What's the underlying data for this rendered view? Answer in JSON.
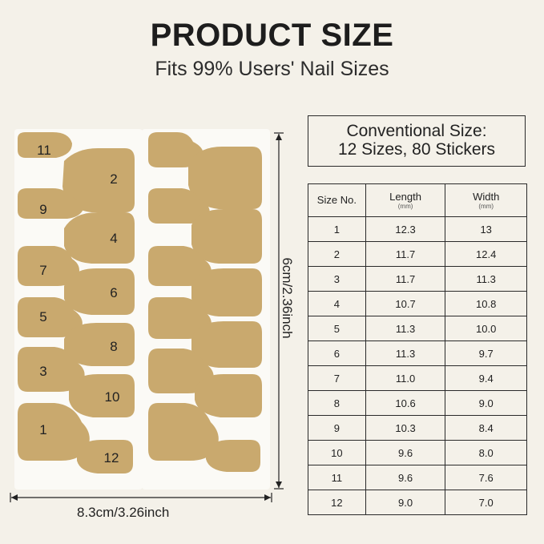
{
  "header": {
    "title": "PRODUCT SIZE",
    "subtitle": "Fits 99% Users' Nail Sizes"
  },
  "dimensions": {
    "width_label": "8.3cm/3.26inch",
    "height_label": "6cm/2.36inch"
  },
  "sticker_numbers": [
    "11",
    "2",
    "9",
    "4",
    "7",
    "6",
    "5",
    "8",
    "3",
    "10",
    "1",
    "12"
  ],
  "colors": {
    "background": "#f4f1e9",
    "sticker": "#c9a96e",
    "sheet": "#fbfaf6"
  },
  "summary": {
    "line1": "Conventional Size:",
    "line2": "12 Sizes, 80 Stickers"
  },
  "table": {
    "headers": {
      "size": "Size No.",
      "length": "Length",
      "width": "Width",
      "unit": "(mm)"
    },
    "rows": [
      {
        "size": "1",
        "length": "12.3",
        "width": "13"
      },
      {
        "size": "2",
        "length": "11.7",
        "width": "12.4"
      },
      {
        "size": "3",
        "length": "11.7",
        "width": "11.3"
      },
      {
        "size": "4",
        "length": "10.7",
        "width": "10.8"
      },
      {
        "size": "5",
        "length": "11.3",
        "width": "10.0"
      },
      {
        "size": "6",
        "length": "11.3",
        "width": "9.7"
      },
      {
        "size": "7",
        "length": "11.0",
        "width": "9.4"
      },
      {
        "size": "8",
        "length": "10.6",
        "width": "9.0"
      },
      {
        "size": "9",
        "length": "10.3",
        "width": "8.4"
      },
      {
        "size": "10",
        "length": "9.6",
        "width": "8.0"
      },
      {
        "size": "11",
        "length": "9.6",
        "width": "7.6"
      },
      {
        "size": "12",
        "length": "9.0",
        "width": "7.0"
      }
    ]
  }
}
